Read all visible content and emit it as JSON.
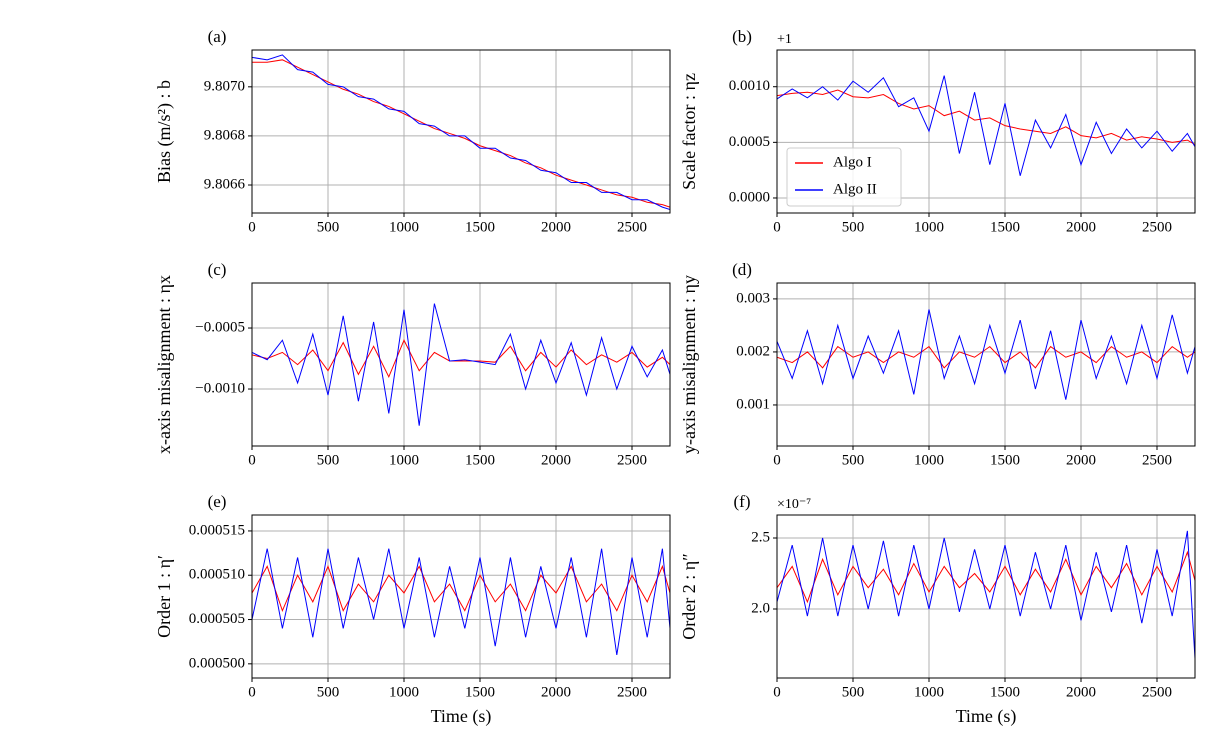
{
  "chart_data": [
    {
      "type": "line",
      "label": "(a)",
      "ylabel": "Bias (m/s²) : b",
      "grid": true,
      "x": [
        0,
        100,
        200,
        300,
        400,
        500,
        600,
        700,
        800,
        900,
        1000,
        1100,
        1200,
        1300,
        1400,
        1500,
        1600,
        1700,
        1800,
        1900,
        2000,
        2100,
        2200,
        2300,
        2400,
        2500,
        2600,
        2700,
        2750
      ],
      "xlim": [
        0,
        2750
      ],
      "xticks": [
        0,
        500,
        1000,
        1500,
        2000,
        2500
      ],
      "ylim": [
        9.806486,
        9.80715
      ],
      "yticks": [
        9.8066,
        9.8068,
        {
          "value": 9.807,
          "label": "9.8070"
        }
      ],
      "series": [
        {
          "name": "Algo I",
          "color": "#ff0000",
          "values": [
            9.8071,
            9.8071,
            9.80711,
            9.80708,
            9.80705,
            9.80702,
            9.80699,
            9.80697,
            9.80694,
            9.80692,
            9.80689,
            9.80686,
            9.80683,
            9.80681,
            9.80679,
            9.80676,
            9.80674,
            9.80672,
            9.80669,
            9.80667,
            9.80664,
            9.80662,
            9.8066,
            9.80658,
            9.80656,
            9.80655,
            9.80653,
            9.80652,
            9.80651
          ]
        },
        {
          "name": "Algo II",
          "color": "#0000ff",
          "values": [
            9.80712,
            9.80711,
            9.80713,
            9.80707,
            9.80706,
            9.80701,
            9.807,
            9.80696,
            9.80695,
            9.80691,
            9.8069,
            9.80685,
            9.80684,
            9.8068,
            9.8068,
            9.80675,
            9.80675,
            9.80671,
            9.8067,
            9.80666,
            9.80665,
            9.80661,
            9.80661,
            9.80657,
            9.80657,
            9.80654,
            9.80654,
            9.80651,
            9.8065
          ]
        }
      ]
    },
    {
      "type": "line",
      "label": "(b)",
      "ylabel": "Scale factor : ηz",
      "offset_text": "+1",
      "grid": true,
      "legend": "center left",
      "x": [
        0,
        100,
        200,
        300,
        400,
        500,
        600,
        700,
        800,
        900,
        1000,
        1100,
        1200,
        1300,
        1400,
        1500,
        1600,
        1700,
        1800,
        1900,
        2000,
        2100,
        2200,
        2300,
        2400,
        2500,
        2600,
        2700,
        2750
      ],
      "xlim": [
        0,
        2750
      ],
      "xticks": [
        0,
        500,
        1000,
        1500,
        2000,
        2500
      ],
      "ylim": [
        -0.000135,
        0.00133
      ],
      "yticks": [
        {
          "value": 0,
          "label": "0.0000"
        },
        0.0005,
        {
          "value": 0.001,
          "label": "0.0010"
        }
      ],
      "series": [
        {
          "name": "Algo I",
          "color": "#ff0000",
          "values": [
            0.00092,
            0.00094,
            0.00095,
            0.00093,
            0.00097,
            0.00091,
            0.0009,
            0.00093,
            0.00085,
            0.0008,
            0.00083,
            0.00074,
            0.00078,
            0.0007,
            0.00072,
            0.00065,
            0.00062,
            0.0006,
            0.00058,
            0.00064,
            0.00056,
            0.00054,
            0.00058,
            0.00052,
            0.00055,
            0.00053,
            0.0005,
            0.00052,
            0.00048
          ]
        },
        {
          "name": "Algo II",
          "color": "#0000ff",
          "values": [
            0.00089,
            0.00098,
            0.0009,
            0.001,
            0.00088,
            0.00105,
            0.00095,
            0.00108,
            0.00082,
            0.0009,
            0.0006,
            0.0011,
            0.0004,
            0.00095,
            0.0003,
            0.00085,
            0.0002,
            0.0007,
            0.00045,
            0.00075,
            0.0003,
            0.00068,
            0.0004,
            0.00062,
            0.00045,
            0.0006,
            0.00042,
            0.00058,
            0.00046
          ]
        }
      ]
    },
    {
      "type": "line",
      "label": "(c)",
      "ylabel": "x-axis misalignment : ηx",
      "grid": true,
      "x": [
        0,
        100,
        200,
        300,
        400,
        500,
        600,
        700,
        800,
        900,
        1000,
        1100,
        1200,
        1300,
        1400,
        1500,
        1600,
        1700,
        1800,
        1900,
        2000,
        2100,
        2200,
        2300,
        2400,
        2500,
        2600,
        2700,
        2750
      ],
      "xlim": [
        0,
        2750
      ],
      "xticks": [
        0,
        500,
        1000,
        1500,
        2000,
        2500
      ],
      "ylim": [
        -0.001467,
        -0.000131
      ],
      "yticks": [
        {
          "value": -0.001,
          "label": "−0.0010"
        },
        {
          "value": -0.0005,
          "label": "−0.0005"
        }
      ],
      "series": [
        {
          "name": "Algo I",
          "color": "#ff0000",
          "values": [
            -0.00072,
            -0.00075,
            -0.0007,
            -0.0008,
            -0.00068,
            -0.00085,
            -0.00062,
            -0.00088,
            -0.00065,
            -0.0009,
            -0.0006,
            -0.00085,
            -0.0007,
            -0.00077,
            -0.00077,
            -0.00077,
            -0.00078,
            -0.00065,
            -0.00085,
            -0.0007,
            -0.00082,
            -0.00068,
            -0.0008,
            -0.00072,
            -0.00078,
            -0.0007,
            -0.00082,
            -0.00074,
            -0.0008
          ]
        },
        {
          "name": "Algo II",
          "color": "#0000ff",
          "values": [
            -0.0007,
            -0.00076,
            -0.0006,
            -0.00095,
            -0.00055,
            -0.00105,
            -0.0004,
            -0.0011,
            -0.00045,
            -0.0012,
            -0.00035,
            -0.0013,
            -0.0003,
            -0.00077,
            -0.00076,
            -0.00078,
            -0.0008,
            -0.00055,
            -0.001,
            -0.0006,
            -0.00095,
            -0.00062,
            -0.00105,
            -0.00058,
            -0.001,
            -0.00065,
            -0.0009,
            -0.00068,
            -0.00088
          ]
        }
      ]
    },
    {
      "type": "line",
      "label": "(d)",
      "ylabel": "y-axis misalignment : ηy",
      "grid": true,
      "x": [
        0,
        100,
        200,
        300,
        400,
        500,
        600,
        700,
        800,
        900,
        1000,
        1100,
        1200,
        1300,
        1400,
        1500,
        1600,
        1700,
        1800,
        1900,
        2000,
        2100,
        2200,
        2300,
        2400,
        2500,
        2600,
        2700,
        2750
      ],
      "xlim": [
        0,
        2750
      ],
      "xticks": [
        0,
        500,
        1000,
        1500,
        2000,
        2500
      ],
      "ylim": [
        0.000226,
        0.0033
      ],
      "yticks": [
        0.001,
        0.002,
        0.003
      ],
      "series": [
        {
          "name": "Algo I",
          "color": "#ff0000",
          "values": [
            0.0019,
            0.0018,
            0.002,
            0.0017,
            0.0021,
            0.0019,
            0.002,
            0.0018,
            0.002,
            0.0019,
            0.0021,
            0.0017,
            0.002,
            0.0019,
            0.0021,
            0.0018,
            0.002,
            0.0017,
            0.0021,
            0.0019,
            0.002,
            0.0018,
            0.0021,
            0.0019,
            0.002,
            0.0018,
            0.0021,
            0.0019,
            0.002
          ]
        },
        {
          "name": "Algo II",
          "color": "#0000ff",
          "values": [
            0.0022,
            0.0015,
            0.0024,
            0.0014,
            0.0025,
            0.0015,
            0.0023,
            0.0016,
            0.0024,
            0.0012,
            0.0028,
            0.0015,
            0.0023,
            0.0014,
            0.0025,
            0.0016,
            0.0026,
            0.0013,
            0.0024,
            0.0011,
            0.0026,
            0.0015,
            0.0023,
            0.0014,
            0.0025,
            0.0015,
            0.0027,
            0.0016,
            0.0021
          ]
        }
      ]
    },
    {
      "type": "line",
      "label": "(e)",
      "ylabel": "Order 1 : η′",
      "xlabel": "Time (s)",
      "grid": true,
      "x": [
        0,
        100,
        200,
        300,
        400,
        500,
        600,
        700,
        800,
        900,
        1000,
        1100,
        1200,
        1300,
        1400,
        1500,
        1600,
        1700,
        1800,
        1900,
        2000,
        2100,
        2200,
        2300,
        2400,
        2500,
        2600,
        2700,
        2750
      ],
      "xlim": [
        0,
        2750
      ],
      "xticks": [
        0,
        500,
        1000,
        1500,
        2000,
        2500
      ],
      "ylim": [
        0.0004984,
        0.0005168
      ],
      "yticks": [
        {
          "value": 0.0005,
          "label": "0.000500"
        },
        0.000505,
        {
          "value": 0.00051,
          "label": "0.000510"
        },
        0.000515
      ],
      "series": [
        {
          "name": "Algo I",
          "color": "#ff0000",
          "values": [
            0.000508,
            0.000511,
            0.000506,
            0.00051,
            0.000507,
            0.000511,
            0.000506,
            0.000509,
            0.000507,
            0.00051,
            0.000508,
            0.000511,
            0.000507,
            0.000509,
            0.000506,
            0.00051,
            0.000507,
            0.000509,
            0.000506,
            0.00051,
            0.000508,
            0.000511,
            0.000507,
            0.000509,
            0.000506,
            0.00051,
            0.000507,
            0.000511,
            0.000508
          ]
        },
        {
          "name": "Algo II",
          "color": "#0000ff",
          "values": [
            0.000505,
            0.000513,
            0.000504,
            0.000512,
            0.000503,
            0.000513,
            0.000504,
            0.000512,
            0.000505,
            0.000513,
            0.000504,
            0.000512,
            0.000503,
            0.000511,
            0.000504,
            0.000512,
            0.000502,
            0.000512,
            0.000503,
            0.000511,
            0.000504,
            0.000512,
            0.000503,
            0.000513,
            0.000501,
            0.000512,
            0.000503,
            0.000513,
            0.000504
          ]
        }
      ]
    },
    {
      "type": "line",
      "label": "(f)",
      "ylabel": "Order 2 : η″",
      "xlabel": "Time (s)",
      "offset_text": "×10⁻⁷",
      "grid": true,
      "x": [
        0,
        100,
        200,
        300,
        400,
        500,
        600,
        700,
        800,
        900,
        1000,
        1100,
        1200,
        1300,
        1400,
        1500,
        1600,
        1700,
        1800,
        1900,
        2000,
        2100,
        2200,
        2300,
        2400,
        2500,
        2600,
        2700,
        2750
      ],
      "xlim": [
        0,
        2750
      ],
      "xticks": [
        0,
        500,
        1000,
        1500,
        2000,
        2500
      ],
      "ylim": [
        1.514,
        2.662
      ],
      "yticks": [
        {
          "value": 2,
          "label": "2.0"
        },
        2.5
      ],
      "series": [
        {
          "name": "Algo I",
          "color": "#ff0000",
          "values": [
            2.15,
            2.3,
            2.05,
            2.35,
            2.1,
            2.3,
            2.15,
            2.28,
            2.1,
            2.32,
            2.12,
            2.3,
            2.15,
            2.25,
            2.12,
            2.3,
            2.1,
            2.28,
            2.12,
            2.35,
            2.1,
            2.3,
            2.15,
            2.32,
            2.1,
            2.3,
            2.12,
            2.4,
            2.2
          ]
        },
        {
          "name": "Algo II",
          "color": "#0000ff",
          "values": [
            2.05,
            2.45,
            1.95,
            2.5,
            1.95,
            2.45,
            2,
            2.48,
            1.95,
            2.45,
            2,
            2.5,
            1.98,
            2.42,
            2,
            2.45,
            1.95,
            2.4,
            2,
            2.45,
            1.92,
            2.4,
            1.98,
            2.45,
            1.9,
            2.42,
            1.95,
            2.55,
            1.65
          ]
        }
      ]
    }
  ]
}
